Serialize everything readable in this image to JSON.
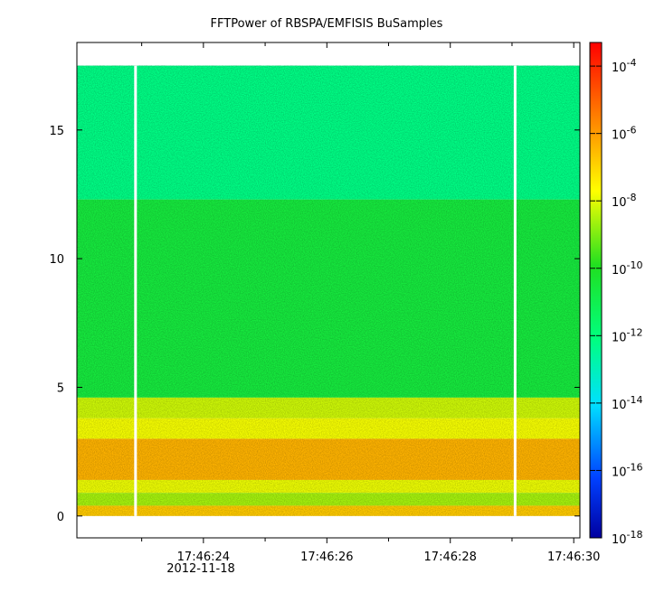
{
  "chart_data": {
    "type": "heatmap",
    "title": "FFTPower of RBSPA/EMFISIS  BuSamples",
    "xlabel": "",
    "ylabel": "",
    "x_ticks": [
      {
        "value": 23.0,
        "label": ""
      },
      {
        "value": 24.0,
        "label": "17:46:24"
      },
      {
        "value": 25.0,
        "label": ""
      },
      {
        "value": 26.0,
        "label": "17:46:26"
      },
      {
        "value": 27.0,
        "label": ""
      },
      {
        "value": 28.0,
        "label": "17:46:28"
      },
      {
        "value": 29.0,
        "label": ""
      },
      {
        "value": 30.0,
        "label": "17:46:30"
      }
    ],
    "x_date_label": "2012-11-18",
    "xlim": [
      21.95,
      30.1
    ],
    "y_ticks": [
      {
        "value": 0,
        "label": "0"
      },
      {
        "value": 5,
        "label": "5"
      },
      {
        "value": 10,
        "label": "10"
      },
      {
        "value": 15,
        "label": "15"
      }
    ],
    "ylim": [
      -0.85,
      18.4
    ],
    "colorbar": {
      "scale": "log",
      "range_exponent": [
        -18,
        -3.3
      ],
      "ticks": [
        {
          "base": "10",
          "exp": "-4",
          "value": -4
        },
        {
          "base": "10",
          "exp": "-6",
          "value": -6
        },
        {
          "base": "10",
          "exp": "-8",
          "value": -8
        },
        {
          "base": "10",
          "exp": "-10",
          "value": -10
        },
        {
          "base": "10",
          "exp": "-12",
          "value": -12
        },
        {
          "base": "10",
          "exp": "-14",
          "value": -14
        },
        {
          "base": "10",
          "exp": "-16",
          "value": -16
        },
        {
          "base": "10",
          "exp": "-18",
          "value": -18
        }
      ]
    },
    "data_time_range": [
      21.95,
      30.1
    ],
    "data_freq_range": [
      0,
      17.5
    ],
    "gaps": [
      22.9,
      29.05
    ],
    "bands": [
      {
        "y0": 12.3,
        "y1": 17.5,
        "log_power": -12.2
      },
      {
        "y0": 4.6,
        "y1": 12.3,
        "log_power": -10.6
      },
      {
        "y0": 3.8,
        "y1": 4.6,
        "log_power": -8.2
      },
      {
        "y0": 3.0,
        "y1": 3.8,
        "log_power": -7.8
      },
      {
        "y0": 1.4,
        "y1": 3.0,
        "log_power": -6.4
      },
      {
        "y0": 0.9,
        "y1": 1.4,
        "log_power": -7.9
      },
      {
        "y0": 0.4,
        "y1": 0.9,
        "log_power": -8.6
      },
      {
        "y0": 0.0,
        "y1": 0.4,
        "log_power": -6.8
      }
    ]
  }
}
